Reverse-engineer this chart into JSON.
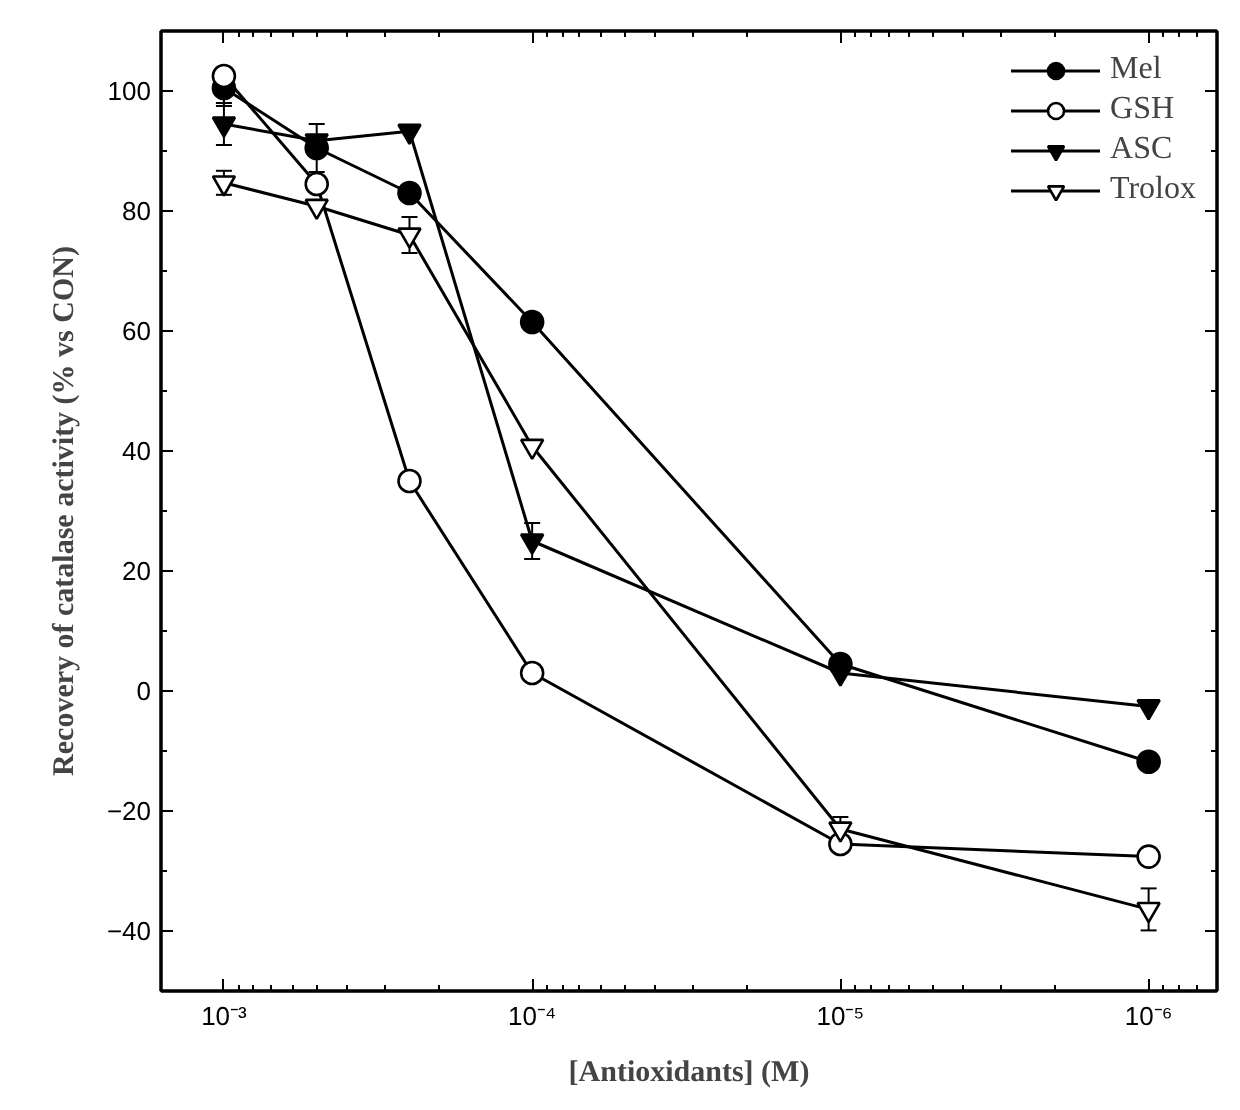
{
  "chart_data": {
    "type": "line",
    "xlabel": "[Antioxidants] (M)",
    "ylabel": "Recovery of catalase activity (% vs CON)",
    "x": [
      0.001,
      0.0005,
      0.00025,
      0.0001,
      1e-05,
      1e-06
    ],
    "log": "x",
    "xlim": [
      0.0016,
      6e-07
    ],
    "xticks": [
      {
        "value": 0.001,
        "label": "10⁻³"
      },
      {
        "value": 0.0001,
        "label": "10⁻⁴"
      },
      {
        "value": 1e-05,
        "label": "10⁻⁵"
      },
      {
        "value": 1e-06,
        "label": "10⁻⁶"
      }
    ],
    "ylim": [
      -50,
      110
    ],
    "yticks": [
      -40,
      -20,
      0,
      20,
      40,
      60,
      80,
      100
    ],
    "grid": false,
    "legend": "top right",
    "line_style": "solid",
    "series": [
      {
        "name": "Mel",
        "color": "#000000",
        "marker": "circle",
        "values": [
          100.5,
          90.5,
          83,
          61.5,
          4.5,
          -11.8
        ],
        "errors": [
          3,
          4,
          null,
          null,
          null,
          null
        ]
      },
      {
        "name": "GSH",
        "color": "#000000",
        "marker": "circle",
        "values": [
          102.5,
          84.5,
          35,
          3,
          -25.5,
          -27.6
        ]
      },
      {
        "name": "ASC",
        "color": "#000000",
        "marker": "triangle",
        "values": [
          94.5,
          91.7,
          93.3,
          25,
          3,
          -2.6
        ],
        "errors": [
          3.5,
          null,
          null,
          3,
          null,
          null
        ]
      },
      {
        "name": "Trolox",
        "color": "#000000",
        "marker": "triangle",
        "values": [
          84.7,
          80.8,
          76,
          40.8,
          -23,
          -36.4
        ],
        "errors": [
          2,
          null,
          3,
          null,
          2,
          3.5
        ]
      }
    ]
  }
}
